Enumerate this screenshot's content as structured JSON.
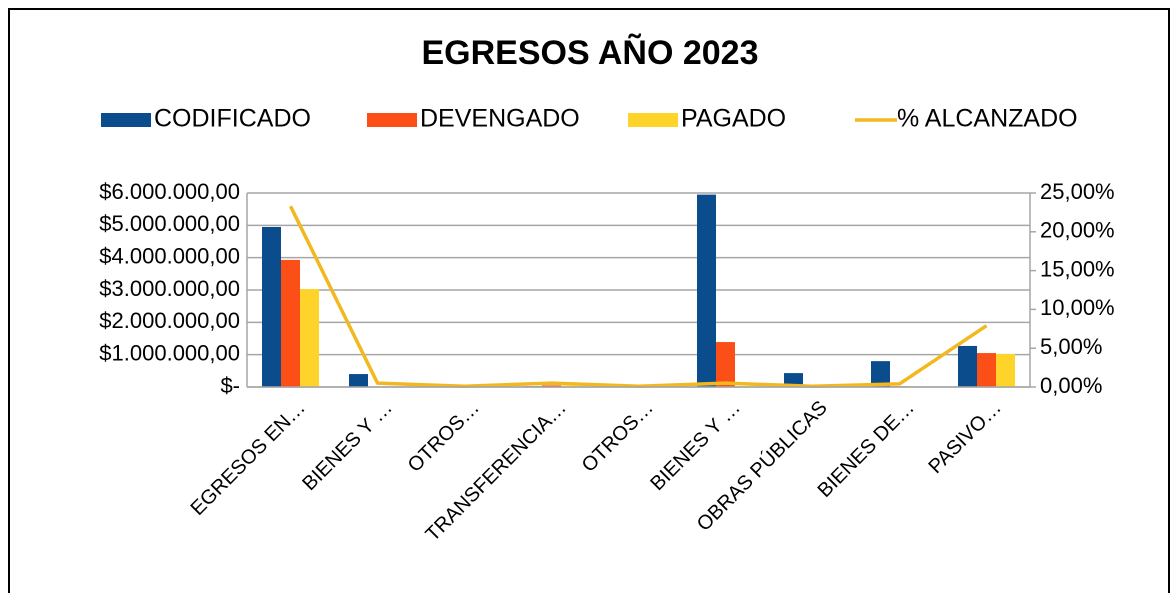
{
  "chart_data": {
    "type": "bar",
    "title": "EGRESOS AÑO 2023",
    "categories": [
      "EGRESOS EN…",
      "BIENES Y …",
      "OTROS…",
      "TRANSFERENCIA…",
      "OTROS…",
      "BIENES Y …",
      "OBRAS PÚBLICAS",
      "BIENES DE…",
      "PASIVO…"
    ],
    "series": [
      {
        "name": "CODIFICADO",
        "color": "#0b4d8c",
        "type": "bar",
        "values": [
          4950000,
          400000,
          0,
          20000,
          0,
          5950000,
          430000,
          800000,
          1270000
        ]
      },
      {
        "name": "DEVENGADO",
        "color": "#fc4f17",
        "type": "bar",
        "values": [
          3930000,
          10000,
          0,
          50000,
          0,
          1390000,
          10000,
          20000,
          1050000
        ]
      },
      {
        "name": "PAGADO",
        "color": "#ffd42a",
        "type": "bar",
        "values": [
          3030000,
          10000,
          0,
          40000,
          0,
          30000,
          5000,
          15000,
          1020000
        ]
      },
      {
        "name": "% ALCANZADO",
        "color": "#f2b81f",
        "type": "line",
        "axis": "y2",
        "values": [
          23.3,
          0.5,
          0.1,
          0.5,
          0.1,
          0.5,
          0.1,
          0.4,
          7.9
        ]
      }
    ],
    "ylim": [
      0,
      6000000
    ],
    "yticks": [
      {
        "value": 0,
        "label": "$-"
      },
      {
        "value": 1000000,
        "label": "$1.000.000,00"
      },
      {
        "value": 2000000,
        "label": "$2.000.000,00"
      },
      {
        "value": 3000000,
        "label": "$3.000.000,00"
      },
      {
        "value": 4000000,
        "label": "$4.000.000,00"
      },
      {
        "value": 5000000,
        "label": "$5.000.000,00"
      },
      {
        "value": 6000000,
        "label": "$6.000.000,00"
      }
    ],
    "y2lim": [
      0,
      25
    ],
    "y2ticks": [
      {
        "value": 0,
        "label": "0,00%"
      },
      {
        "value": 5,
        "label": "5,00%"
      },
      {
        "value": 10,
        "label": "10,00%"
      },
      {
        "value": 15,
        "label": "15,00%"
      },
      {
        "value": 20,
        "label": "20,00%"
      },
      {
        "value": 25,
        "label": "25,00%"
      }
    ],
    "grid": true,
    "legend": "top"
  }
}
